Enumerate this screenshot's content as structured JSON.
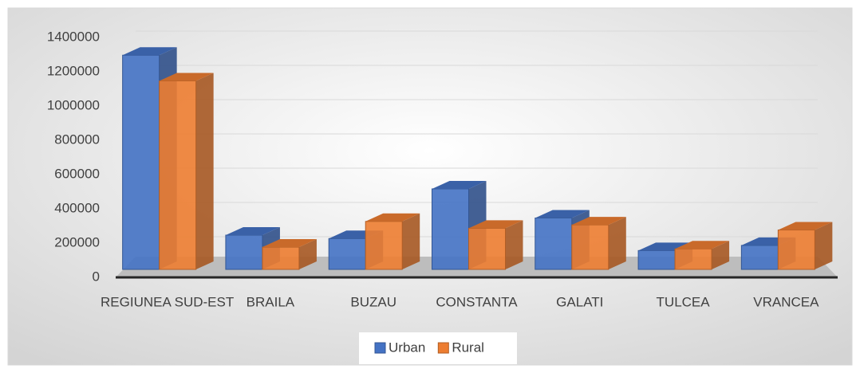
{
  "chart_data": {
    "type": "bar3d",
    "categories": [
      "REGIUNEA SUD-EST",
      "BRAILA",
      "BUZAU",
      "CONSTANTA",
      "GALATI",
      "TULCEA",
      "VRANCEA"
    ],
    "series": [
      {
        "name": "Urban",
        "color": "#4472c4",
        "values": [
          1250000,
          200000,
          180000,
          470000,
          300000,
          110000,
          140000
        ]
      },
      {
        "name": "Rural",
        "color": "#ed7d31",
        "values": [
          1100000,
          130000,
          280000,
          240000,
          260000,
          120000,
          230000
        ]
      }
    ],
    "ylim": [
      0,
      1400000
    ],
    "yticks": [
      0,
      200000,
      400000,
      600000,
      800000,
      1000000,
      1200000,
      1400000
    ],
    "grid": true,
    "legend": "bottom"
  }
}
